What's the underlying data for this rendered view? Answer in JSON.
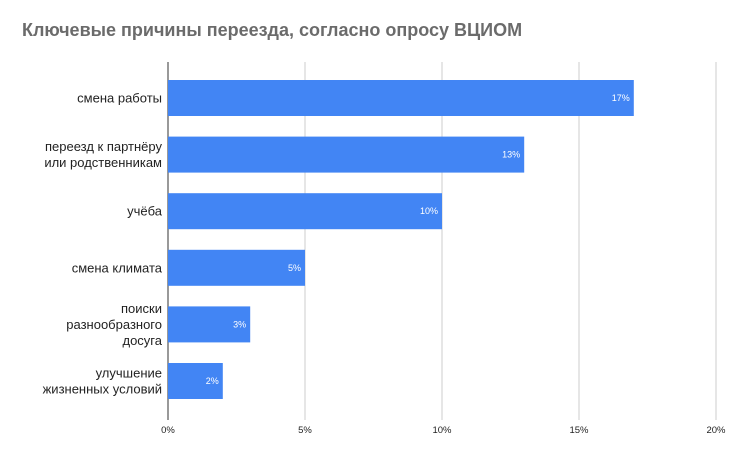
{
  "chart_data": {
    "type": "bar",
    "orientation": "horizontal",
    "title": "Ключевые причины переезда, согласно опросу ВЦИОМ",
    "categories": [
      [
        "смена работы"
      ],
      [
        "переезд к партнёру",
        "или родственникам"
      ],
      [
        "учёба"
      ],
      [
        "смена климата"
      ],
      [
        "поиски",
        "разнообразного",
        "досуга"
      ],
      [
        "улучшение",
        "жизненных условий"
      ]
    ],
    "values": [
      17,
      13,
      10,
      5,
      3,
      2
    ],
    "data_labels": [
      "17%",
      "13%",
      "10%",
      "5%",
      "3%",
      "2%"
    ],
    "x_ticks": [
      0,
      5,
      10,
      15,
      20
    ],
    "x_tick_labels": [
      "0%",
      "5%",
      "10%",
      "15%",
      "20%"
    ],
    "xlim": [
      0,
      20
    ],
    "grid": true,
    "bar_color": "#4285f4",
    "grid_color": "#cccccc",
    "axis_color": "#333333"
  }
}
